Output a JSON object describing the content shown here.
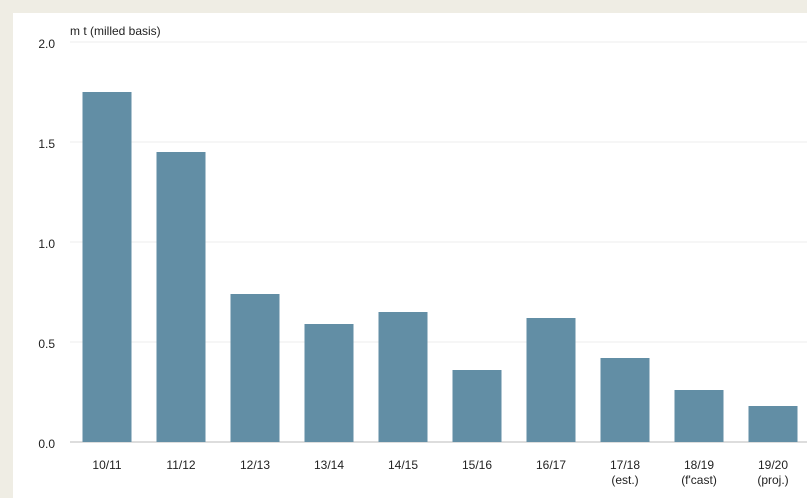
{
  "chart_data": {
    "type": "bar",
    "y_label": "m t (milled basis)",
    "categories": [
      "10/11",
      "11/12",
      "12/13",
      "13/14",
      "14/15",
      "15/16",
      "16/17",
      "17/18\n(est.)",
      "18/19\n(f'cast)",
      "19/20\n(proj.)"
    ],
    "values": [
      1.75,
      1.45,
      0.74,
      0.59,
      0.65,
      0.36,
      0.62,
      0.42,
      0.26,
      0.18
    ],
    "color": "#628ea5",
    "ylim": [
      0,
      2
    ],
    "yticks": [
      {
        "value": 0,
        "label": "0.0"
      },
      0.5,
      {
        "value": 1,
        "label": "1.0"
      },
      1.5,
      {
        "value": 2,
        "label": "2.0"
      }
    ],
    "grid": true
  }
}
